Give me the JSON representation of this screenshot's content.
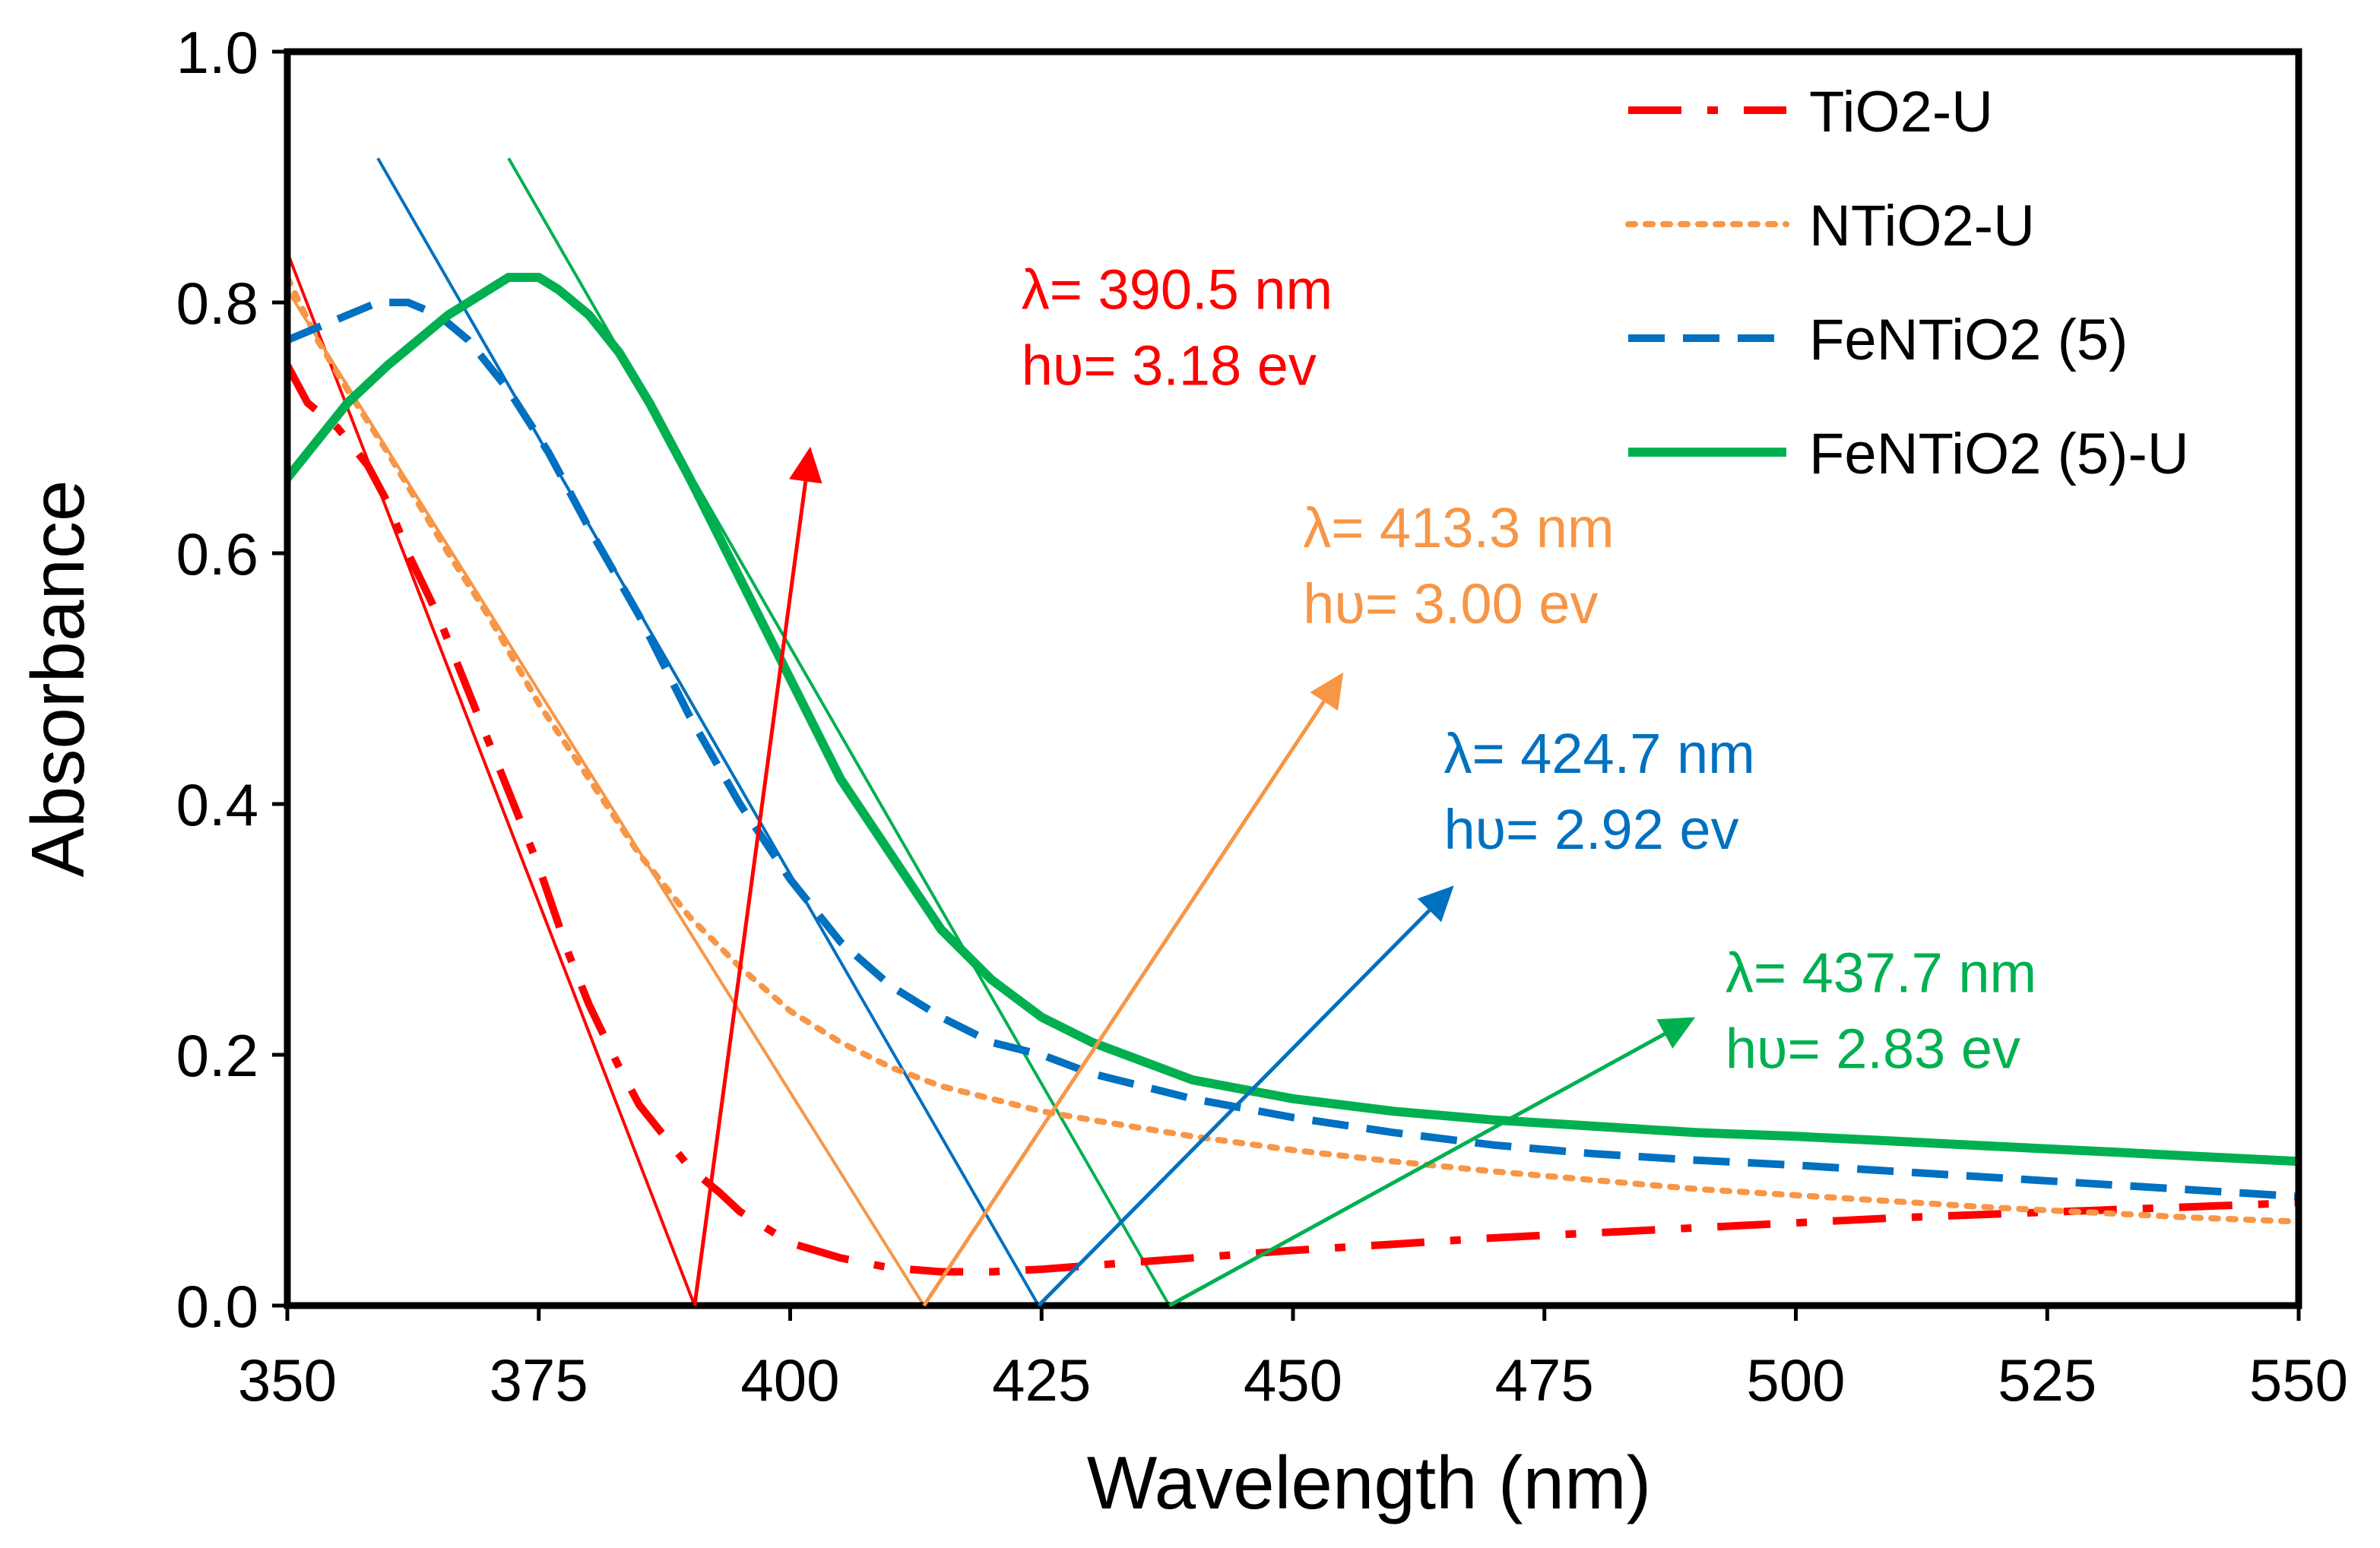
{
  "chart_data": {
    "type": "line",
    "title": "",
    "xlabel": "Wavelength (nm)",
    "ylabel": "Absorbance",
    "xlim": [
      350,
      550
    ],
    "ylim": [
      0.0,
      1.0
    ],
    "xticks": [
      350,
      375,
      400,
      425,
      450,
      475,
      500,
      525,
      550
    ],
    "xtick_labels": [
      "350",
      "375",
      "400",
      "425",
      "450",
      "475",
      "500",
      "525",
      "550"
    ],
    "yticks": [
      0.0,
      0.2,
      0.4,
      0.6,
      0.8,
      1.0
    ],
    "ytick_labels": [
      "0.0",
      "0.2",
      "0.4",
      "0.6",
      "0.8",
      "1.0"
    ],
    "grid": false,
    "legend_position": "top-right",
    "series": [
      {
        "name": "TiO2-U",
        "color": "#ff0000",
        "style": "dash-dot",
        "x": [
          350,
          352,
          355,
          358,
          360,
          362,
          365,
          368,
          370,
          372,
          375,
          378,
          380,
          383,
          385,
          388,
          390,
          393,
          395,
          398,
          400,
          405,
          410,
          415,
          420,
          425,
          430,
          440,
          450,
          460,
          470,
          480,
          490,
          500,
          510,
          520,
          530,
          540,
          550
        ],
        "y": [
          0.75,
          0.72,
          0.7,
          0.67,
          0.64,
          0.6,
          0.55,
          0.49,
          0.45,
          0.41,
          0.35,
          0.28,
          0.24,
          0.19,
          0.16,
          0.13,
          0.11,
          0.09,
          0.075,
          0.06,
          0.05,
          0.038,
          0.03,
          0.027,
          0.027,
          0.029,
          0.032,
          0.038,
          0.044,
          0.049,
          0.054,
          0.058,
          0.062,
          0.066,
          0.07,
          0.073,
          0.076,
          0.079,
          0.082
        ]
      },
      {
        "name": "NTiO2-U",
        "color": "#f79646",
        "style": "dotted",
        "x": [
          350,
          353,
          356,
          360,
          363,
          366,
          370,
          375,
          380,
          385,
          390,
          395,
          400,
          405,
          410,
          415,
          420,
          425,
          430,
          440,
          450,
          460,
          470,
          480,
          490,
          500,
          510,
          520,
          530,
          540,
          550
        ],
        "y": [
          0.82,
          0.77,
          0.73,
          0.68,
          0.64,
          0.6,
          0.55,
          0.48,
          0.42,
          0.36,
          0.31,
          0.27,
          0.235,
          0.21,
          0.19,
          0.175,
          0.165,
          0.155,
          0.148,
          0.135,
          0.124,
          0.115,
          0.107,
          0.1,
          0.093,
          0.088,
          0.083,
          0.078,
          0.074,
          0.07,
          0.067
        ]
      },
      {
        "name": "FeNTiO2 (5)",
        "color": "#0070c0",
        "style": "dashed",
        "x": [
          350,
          353,
          356,
          359,
          362,
          365,
          368,
          372,
          376,
          380,
          385,
          390,
          395,
          400,
          405,
          410,
          415,
          420,
          425,
          430,
          440,
          450,
          460,
          470,
          480,
          490,
          500,
          510,
          520,
          530,
          540,
          550
        ],
        "y": [
          0.77,
          0.78,
          0.79,
          0.8,
          0.8,
          0.79,
          0.77,
          0.73,
          0.68,
          0.62,
          0.55,
          0.47,
          0.4,
          0.34,
          0.29,
          0.255,
          0.23,
          0.21,
          0.2,
          0.185,
          0.165,
          0.15,
          0.138,
          0.128,
          0.121,
          0.116,
          0.112,
          0.107,
          0.102,
          0.097,
          0.092,
          0.087
        ]
      },
      {
        "name": "FeNTiO2 (5)-U",
        "color": "#00b050",
        "style": "solid",
        "x": [
          350,
          353,
          356,
          360,
          363,
          366,
          370,
          372,
          375,
          377,
          380,
          383,
          386,
          390,
          395,
          400,
          405,
          410,
          415,
          420,
          425,
          430,
          440,
          450,
          460,
          470,
          480,
          490,
          500,
          510,
          520,
          530,
          540,
          550
        ],
        "y": [
          0.66,
          0.69,
          0.72,
          0.75,
          0.77,
          0.79,
          0.81,
          0.82,
          0.82,
          0.81,
          0.79,
          0.76,
          0.72,
          0.66,
          0.58,
          0.5,
          0.42,
          0.36,
          0.3,
          0.26,
          0.23,
          0.21,
          0.18,
          0.165,
          0.155,
          0.148,
          0.143,
          0.138,
          0.135,
          0.131,
          0.127,
          0.123,
          0.119,
          0.115
        ]
      }
    ],
    "tangent_lines": [
      {
        "color": "#ff0000",
        "x": [
          350,
          390.5
        ],
        "y": [
          0.84,
          0.0
        ]
      },
      {
        "color": "#f79646",
        "x": [
          350,
          413.3
        ],
        "y": [
          0.81,
          0.0
        ]
      },
      {
        "color": "#0070c0",
        "x": [
          359,
          424.7
        ],
        "y": [
          0.915,
          0.0
        ]
      },
      {
        "color": "#00b050",
        "x": [
          372,
          437.7
        ],
        "y": [
          0.915,
          0.0
        ]
      }
    ],
    "arrows": [
      {
        "color": "#ff0000",
        "x": [
          390.5,
          402
        ],
        "y": [
          0.0,
          0.685
        ]
      },
      {
        "color": "#f79646",
        "x": [
          413.3,
          455
        ],
        "y": [
          0.0,
          0.505
        ]
      },
      {
        "color": "#0070c0",
        "x": [
          424.7,
          466
        ],
        "y": [
          0.0,
          0.335
        ]
      },
      {
        "color": "#00b050",
        "x": [
          437.7,
          490
        ],
        "y": [
          0.0,
          0.23
        ]
      }
    ],
    "annotations": [
      {
        "line1": "λ= 390.5 nm",
        "line2": "hυ= 3.18 ev",
        "color": "#ff0000",
        "x": 423,
        "y": 0.795
      },
      {
        "line1": "λ= 413.3 nm",
        "line2": "hυ= 3.00 ev",
        "color": "#f79646",
        "x": 451,
        "y": 0.605
      },
      {
        "line1": "λ= 424.7 nm",
        "line2": "hυ= 2.92 ev",
        "color": "#0070c0",
        "x": 465,
        "y": 0.425
      },
      {
        "line1": "λ= 437.7 nm",
        "line2": "hυ= 2.83 ev",
        "color": "#00b050",
        "x": 493,
        "y": 0.25
      }
    ]
  }
}
